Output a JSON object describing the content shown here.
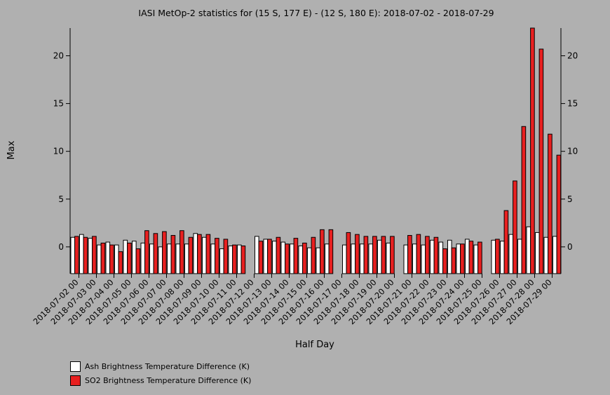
{
  "chart_data": {
    "type": "bar",
    "title": "IASI MetOp-2 statistics for (15 S, 177 E) - (12 S, 180 E): 2018-07-02 - 2018-07-29",
    "xlabel": "Half Day",
    "ylabel": "Max",
    "ylim": [
      -2.8,
      22.9
    ],
    "yticks": [
      0,
      5,
      10,
      15,
      20
    ],
    "grid": false,
    "legend_position": "bottom-left",
    "categories": [
      "2018-07-02 00",
      "2018-07-02 12",
      "2018-07-03 00",
      "2018-07-03 12",
      "2018-07-04 00",
      "2018-07-04 12",
      "2018-07-05 00",
      "2018-07-05 12",
      "2018-07-06 00",
      "2018-07-06 12",
      "2018-07-07 00",
      "2018-07-07 12",
      "2018-07-08 00",
      "2018-07-08 12",
      "2018-07-09 00",
      "2018-07-09 12",
      "2018-07-10 00",
      "2018-07-10 12",
      "2018-07-11 00",
      "2018-07-11 12",
      "2018-07-12 00",
      "2018-07-12 12",
      "2018-07-13 00",
      "2018-07-13 12",
      "2018-07-14 00",
      "2018-07-14 12",
      "2018-07-15 00",
      "2018-07-15 12",
      "2018-07-16 00",
      "2018-07-16 12",
      "2018-07-17 00",
      "2018-07-17 12",
      "2018-07-18 00",
      "2018-07-18 12",
      "2018-07-19 00",
      "2018-07-19 12",
      "2018-07-20 00",
      "2018-07-20 12",
      "2018-07-21 00",
      "2018-07-21 12",
      "2018-07-22 00",
      "2018-07-22 12",
      "2018-07-23 00",
      "2018-07-23 12",
      "2018-07-24 00",
      "2018-07-24 12",
      "2018-07-25 00",
      "2018-07-25 12",
      "2018-07-26 00",
      "2018-07-26 12",
      "2018-07-27 00",
      "2018-07-27 12",
      "2018-07-28 00",
      "2018-07-28 12",
      "2018-07-29 00",
      "2018-07-29 12"
    ],
    "xtick_labels": [
      "2018-07-02 00",
      "2018-07-03 00",
      "2018-07-04 00",
      "2018-07-05 00",
      "2018-07-06 00",
      "2018-07-07 00",
      "2018-07-08 00",
      "2018-07-09 00",
      "2018-07-10 00",
      "2018-07-11 00",
      "2018-07-12 00",
      "2018-07-13 00",
      "2018-07-14 00",
      "2018-07-15 00",
      "2018-07-16 00",
      "2018-07-17 00",
      "2018-07-18 00",
      "2018-07-19 00",
      "2018-07-20 00",
      "2018-07-21 00",
      "2018-07-22 00",
      "2018-07-23 00",
      "2018-07-24 00",
      "2018-07-25 00",
      "2018-07-26 00",
      "2018-07-27 00",
      "2018-07-28 00",
      "2018-07-29 00"
    ],
    "series": [
      {
        "name": "Ash Brightness Temperature Difference (K)",
        "color": "#ffffff",
        "values": [
          1.0,
          1.3,
          0.9,
          0.2,
          0.5,
          0.2,
          0.7,
          0.6,
          0.4,
          0.3,
          0.0,
          0.3,
          0.3,
          0.3,
          1.4,
          1.0,
          0.3,
          -0.2,
          0.1,
          0.2,
          null,
          1.1,
          0.8,
          0.6,
          0.5,
          0.3,
          0.1,
          -0.1,
          -0.1,
          0.3,
          null,
          0.2,
          0.3,
          0.3,
          0.3,
          0.7,
          0.4,
          null,
          0.2,
          0.3,
          0.2,
          0.7,
          0.5,
          0.7,
          0.3,
          0.8,
          0.2,
          null,
          0.7,
          0.6,
          1.3,
          0.8,
          2.1,
          1.5,
          1.0,
          1.1
        ]
      },
      {
        "name": "SO2 Brightness Temperature Difference (K)",
        "color": "#e82020",
        "values": [
          1.1,
          1.0,
          1.1,
          0.4,
          0.2,
          -0.5,
          0.4,
          -0.2,
          1.7,
          1.4,
          1.6,
          1.2,
          1.7,
          1.0,
          1.3,
          1.3,
          0.9,
          0.8,
          0.2,
          0.1,
          null,
          0.6,
          0.8,
          1.0,
          0.3,
          0.9,
          0.4,
          1.0,
          1.8,
          1.8,
          null,
          1.5,
          1.3,
          1.1,
          1.1,
          1.1,
          1.1,
          null,
          1.2,
          1.3,
          1.1,
          1.0,
          -0.2,
          -0.1,
          0.3,
          0.6,
          0.5,
          null,
          0.8,
          3.8,
          6.9,
          12.6,
          22.9,
          20.7,
          11.8,
          9.6
        ]
      }
    ]
  }
}
